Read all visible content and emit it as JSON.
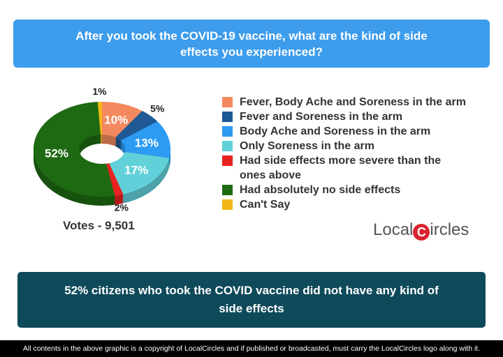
{
  "header": {
    "title": "After you took the COVID-19 vaccine, what are the kind of side effects you experienced?"
  },
  "chart_data": {
    "type": "pie",
    "style": "3d-donut",
    "title": "After you took the COVID-19 vaccine, what are the kind of side effects you experienced?",
    "categories": [
      "Fever, Body Ache and Soreness in the arm",
      "Fever and Soreness in the arm",
      "Body Ache and Soreness in the arm",
      "Only Soreness in the arm",
      "Had side effects more severe than the ones above",
      "Had absolutely no side effects",
      "Can't Say"
    ],
    "values": [
      10,
      5,
      13,
      17,
      2,
      52,
      1
    ],
    "labels": [
      "10%",
      "5%",
      "13%",
      "17%",
      "2%",
      "52%",
      "1%"
    ],
    "colors": [
      "#f4895f",
      "#1f5a96",
      "#2e9bf2",
      "#62d0d8",
      "#e8231f",
      "#1e6a12",
      "#f2b817"
    ],
    "legend_position": "right"
  },
  "votes": "Votes - 9,501",
  "logo": {
    "text_left": "Local",
    "text_c": "C",
    "text_right": "ircles"
  },
  "conclusion": "52% citizens who took the COVID vaccine did not have any kind of side effects",
  "footer": "All contents in the above graphic is a copyright of LocalCircles and if published or broadcasted, must carry the LocalCircles logo along with it."
}
